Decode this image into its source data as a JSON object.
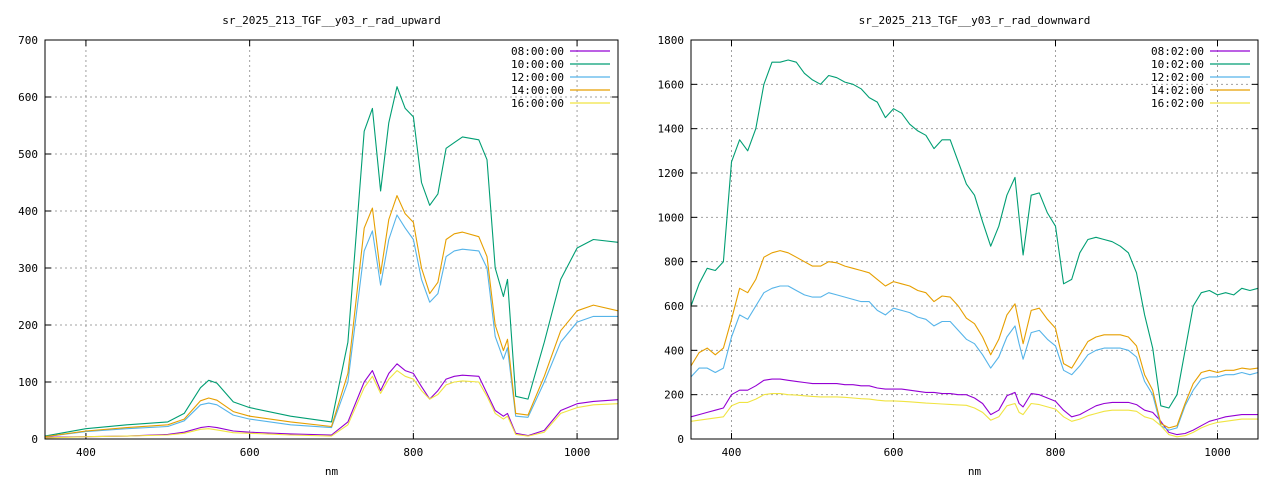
{
  "chart_data": [
    {
      "type": "line",
      "title": "sr_2025_213_TGF__y03_r_rad_upward",
      "xlabel": "nm",
      "ylabel": "",
      "xlim": [
        350,
        1050
      ],
      "ylim": [
        0,
        700
      ],
      "xticks": [
        400,
        600,
        800,
        1000
      ],
      "yticks": [
        0,
        100,
        200,
        300,
        400,
        500,
        600,
        700
      ],
      "grid": true,
      "legend_position": "top-right",
      "x": [
        350,
        400,
        450,
        500,
        520,
        540,
        550,
        560,
        580,
        600,
        650,
        700,
        720,
        740,
        750,
        760,
        770,
        780,
        790,
        800,
        810,
        820,
        830,
        840,
        850,
        860,
        880,
        890,
        900,
        910,
        915,
        925,
        940,
        960,
        980,
        1000,
        1020,
        1050
      ],
      "series": [
        {
          "name": "08:00:00",
          "color": "#9400d3",
          "values": [
            3,
            4,
            5,
            8,
            12,
            20,
            22,
            20,
            14,
            12,
            9,
            7,
            30,
            100,
            120,
            85,
            115,
            132,
            120,
            115,
            92,
            70,
            85,
            105,
            110,
            112,
            110,
            80,
            50,
            40,
            45,
            10,
            6,
            15,
            50,
            62,
            66,
            69
          ]
        },
        {
          "name": "10:00:00",
          "color": "#009e73",
          "values": [
            5,
            18,
            25,
            30,
            45,
            90,
            103,
            98,
            65,
            55,
            40,
            30,
            170,
            540,
            580,
            435,
            555,
            618,
            580,
            565,
            450,
            410,
            430,
            510,
            520,
            530,
            525,
            490,
            300,
            250,
            280,
            75,
            70,
            170,
            280,
            335,
            350,
            345
          ]
        },
        {
          "name": "12:00:00",
          "color": "#56b4e9",
          "values": [
            4,
            13,
            18,
            22,
            32,
            60,
            63,
            60,
            42,
            35,
            25,
            20,
            100,
            330,
            365,
            270,
            350,
            393,
            370,
            350,
            280,
            240,
            255,
            320,
            330,
            333,
            330,
            300,
            180,
            140,
            160,
            40,
            38,
            100,
            170,
            205,
            215,
            215
          ]
        },
        {
          "name": "14:00:00",
          "color": "#e69f00",
          "values": [
            4,
            14,
            20,
            25,
            35,
            67,
            72,
            68,
            48,
            40,
            30,
            22,
            115,
            370,
            405,
            290,
            385,
            427,
            395,
            380,
            300,
            255,
            275,
            350,
            360,
            363,
            355,
            320,
            200,
            155,
            175,
            45,
            42,
            110,
            190,
            225,
            235,
            225
          ]
        },
        {
          "name": "16:00:00",
          "color": "#f0e442",
          "values": [
            2,
            4,
            5,
            7,
            10,
            17,
            18,
            16,
            11,
            10,
            7,
            5,
            25,
            90,
            110,
            80,
            105,
            120,
            110,
            105,
            85,
            70,
            78,
            95,
            100,
            102,
            100,
            75,
            45,
            35,
            40,
            8,
            5,
            12,
            45,
            55,
            60,
            62
          ]
        }
      ]
    },
    {
      "type": "line",
      "title": "sr_2025_213_TGF__y03_r_rad_downward",
      "xlabel": "nm",
      "ylabel": "",
      "xlim": [
        350,
        1050
      ],
      "ylim": [
        0,
        1800
      ],
      "xticks": [
        400,
        600,
        800,
        1000
      ],
      "yticks": [
        0,
        200,
        400,
        600,
        800,
        1000,
        1200,
        1400,
        1600,
        1800
      ],
      "grid": true,
      "legend_position": "top-right",
      "x": [
        350,
        360,
        370,
        380,
        390,
        400,
        410,
        420,
        430,
        440,
        450,
        460,
        470,
        480,
        490,
        500,
        510,
        520,
        530,
        540,
        550,
        560,
        570,
        580,
        590,
        600,
        610,
        620,
        630,
        640,
        650,
        660,
        670,
        680,
        690,
        700,
        710,
        720,
        730,
        740,
        750,
        755,
        760,
        770,
        780,
        790,
        800,
        810,
        820,
        830,
        840,
        850,
        860,
        870,
        880,
        890,
        900,
        910,
        920,
        930,
        940,
        950,
        960,
        970,
        980,
        990,
        1000,
        1010,
        1020,
        1030,
        1040,
        1050
      ],
      "series": [
        {
          "name": "08:02:00",
          "color": "#9400d3",
          "values": [
            100,
            110,
            120,
            130,
            140,
            200,
            220,
            220,
            240,
            265,
            270,
            270,
            265,
            260,
            255,
            250,
            250,
            250,
            250,
            245,
            245,
            240,
            240,
            230,
            225,
            225,
            225,
            220,
            215,
            210,
            210,
            205,
            205,
            200,
            200,
            185,
            160,
            110,
            130,
            195,
            210,
            160,
            145,
            205,
            200,
            185,
            170,
            130,
            100,
            110,
            130,
            150,
            160,
            165,
            165,
            165,
            155,
            130,
            120,
            80,
            30,
            20,
            25,
            40,
            60,
            80,
            90,
            100,
            105,
            110,
            110,
            110
          ]
        },
        {
          "name": "10:02:00",
          "color": "#009e73",
          "values": [
            600,
            700,
            770,
            760,
            800,
            1250,
            1350,
            1300,
            1400,
            1600,
            1700,
            1700,
            1710,
            1700,
            1650,
            1620,
            1600,
            1640,
            1630,
            1610,
            1600,
            1580,
            1540,
            1520,
            1450,
            1490,
            1470,
            1420,
            1390,
            1370,
            1310,
            1350,
            1350,
            1250,
            1150,
            1100,
            980,
            870,
            960,
            1100,
            1180,
            1000,
            830,
            1100,
            1110,
            1020,
            960,
            700,
            720,
            840,
            900,
            910,
            900,
            890,
            870,
            840,
            750,
            560,
            410,
            150,
            140,
            200,
            400,
            600,
            660,
            670,
            650,
            660,
            650,
            680,
            670,
            680
          ]
        },
        {
          "name": "12:02:00",
          "color": "#56b4e9",
          "values": [
            280,
            320,
            320,
            300,
            320,
            460,
            560,
            540,
            600,
            660,
            680,
            690,
            690,
            670,
            650,
            640,
            640,
            660,
            650,
            640,
            630,
            620,
            620,
            580,
            560,
            590,
            580,
            570,
            550,
            540,
            510,
            530,
            530,
            490,
            450,
            430,
            380,
            320,
            370,
            460,
            510,
            430,
            360,
            480,
            490,
            450,
            420,
            310,
            290,
            330,
            380,
            400,
            410,
            410,
            410,
            400,
            370,
            260,
            200,
            60,
            40,
            50,
            150,
            220,
            270,
            280,
            280,
            290,
            290,
            300,
            290,
            300
          ]
        },
        {
          "name": "14:02:00",
          "color": "#e69f00",
          "values": [
            330,
            390,
            410,
            380,
            410,
            540,
            680,
            660,
            720,
            820,
            840,
            850,
            840,
            820,
            800,
            780,
            780,
            800,
            795,
            780,
            770,
            760,
            750,
            720,
            690,
            710,
            700,
            690,
            670,
            660,
            620,
            645,
            640,
            600,
            545,
            520,
            460,
            380,
            450,
            560,
            610,
            520,
            430,
            580,
            590,
            540,
            500,
            340,
            320,
            380,
            440,
            460,
            470,
            470,
            470,
            460,
            420,
            290,
            220,
            70,
            50,
            60,
            160,
            250,
            300,
            310,
            300,
            310,
            310,
            320,
            315,
            320
          ]
        },
        {
          "name": "16:02:00",
          "color": "#f0e442",
          "values": [
            80,
            85,
            90,
            95,
            100,
            150,
            165,
            165,
            180,
            200,
            205,
            205,
            200,
            198,
            195,
            192,
            190,
            190,
            190,
            188,
            185,
            182,
            180,
            175,
            172,
            172,
            170,
            168,
            165,
            162,
            160,
            158,
            156,
            154,
            152,
            140,
            120,
            85,
            100,
            150,
            160,
            120,
            110,
            160,
            155,
            145,
            135,
            100,
            80,
            90,
            105,
            115,
            125,
            130,
            130,
            130,
            125,
            100,
            90,
            60,
            20,
            10,
            15,
            30,
            50,
            65,
            75,
            80,
            85,
            90,
            90,
            90
          ]
        }
      ]
    }
  ]
}
